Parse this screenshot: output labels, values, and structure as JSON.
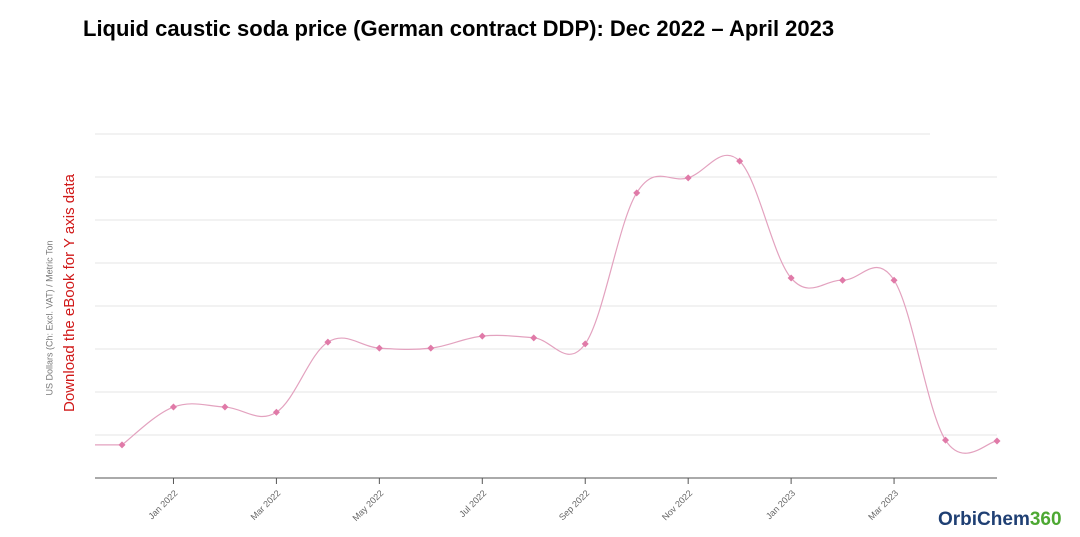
{
  "chart_data": {
    "type": "line",
    "title": "Liquid caustic soda price (German contract DDP): Dec 2022 – April 2023",
    "y_label": "US Dollars (Ch: Excl. VAT) / Metric Ton",
    "note": "Download the eBook for Y axis data",
    "logo": {
      "text": "OrbiChem",
      "suffix": "360"
    },
    "categories": [
      null,
      "Jan 2022",
      null,
      "Mar 2022",
      null,
      "May 2022",
      null,
      "Jul 2022",
      null,
      "Sep 2022",
      null,
      "Nov 2022",
      null,
      "Jan 2023",
      null,
      "Mar 2023",
      null,
      null
    ],
    "series": [
      {
        "name": null,
        "color": "#e3a2bf",
        "marker_color": "#e07aa8",
        "values": [
          0.77,
          1.65,
          1.65,
          1.53,
          3.16,
          3.02,
          3.02,
          3.3,
          3.26,
          3.12,
          6.63,
          6.98,
          7.37,
          4.65,
          4.6,
          4.6,
          0.88,
          0.86
        ]
      }
    ],
    "ylim": [
      0,
      8
    ],
    "yticks": [
      0,
      1,
      2,
      3,
      4,
      5,
      6,
      7,
      8
    ],
    "ytick_labels": false,
    "grid": true
  }
}
